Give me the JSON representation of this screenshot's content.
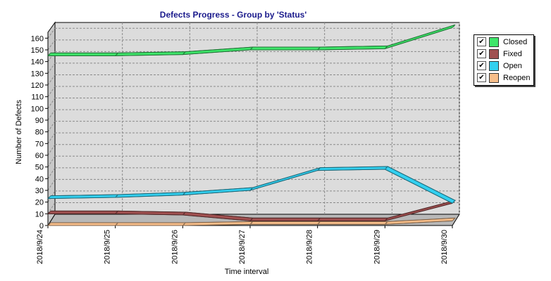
{
  "chart_data": {
    "type": "line",
    "title": "Defects Progress - Group by 'Status'",
    "xlabel": "Time interval",
    "ylabel": "Number of Defects",
    "categories": [
      "2018/9/24",
      "2018/9/25",
      "2018/9/26",
      "2018/9/27",
      "2018/9/28",
      "2018/9/29",
      "2018/9/30"
    ],
    "ylim": [
      0,
      165
    ],
    "yticks": [
      "0",
      "10",
      "20",
      "30",
      "40",
      "50",
      "60",
      "70",
      "80",
      "90",
      "100",
      "110",
      "120",
      "130",
      "140",
      "150",
      "160"
    ],
    "grid": true,
    "legend_position": "right",
    "series": [
      {
        "name": "Reopen",
        "color": "#f7be8a",
        "values": [
          0,
          0,
          0,
          1,
          1,
          1,
          4
        ]
      },
      {
        "name": "Fixed",
        "color": "#a05050",
        "values": [
          10,
          10,
          9,
          4,
          4,
          4,
          19
        ]
      },
      {
        "name": "Open",
        "color": "#33d0f0",
        "values": [
          23,
          24,
          26,
          30,
          47,
          48,
          19
        ]
      },
      {
        "name": "Closed",
        "color": "#3ee66a",
        "values": [
          145,
          145,
          146,
          150,
          150,
          151,
          169
        ]
      }
    ]
  },
  "legend": {
    "check_glyph": "✔",
    "items": [
      {
        "label": "Closed",
        "color": "#3ee66a"
      },
      {
        "label": "Fixed",
        "color": "#a05050"
      },
      {
        "label": "Open",
        "color": "#33d0f0"
      },
      {
        "label": "Reopen",
        "color": "#f7be8a"
      }
    ]
  }
}
